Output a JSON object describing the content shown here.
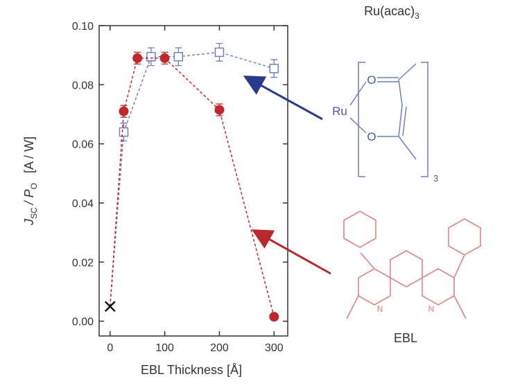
{
  "chart_data": {
    "type": "scatter",
    "xlabel": "EBL Thickness [Å]",
    "ylabel": [
      "J",
      "SC",
      "/ P",
      "O",
      "[A / W]"
    ],
    "xlim": [
      -20,
      325
    ],
    "ylim": [
      -0.005,
      0.1
    ],
    "xticks": [
      0,
      100,
      200,
      300
    ],
    "yticks": [
      {
        "value": 0,
        "label": "0.00"
      },
      {
        "value": 0.02,
        "label": "0.02"
      },
      {
        "value": 0.04,
        "label": "0.04"
      },
      {
        "value": 0.06,
        "label": "0.06"
      },
      {
        "value": 0.08,
        "label": "0.08"
      },
      {
        "value": 0.1,
        "label": "0.10"
      }
    ],
    "reference": {
      "x": 0,
      "value": 0.005,
      "color": "#111111"
    },
    "series": [
      {
        "color": "#6f7fc0",
        "marker": "square",
        "x": [
          25,
          75,
          125,
          200,
          300
        ],
        "values": [
          0.064,
          0.0895,
          0.0895,
          0.091,
          0.0855
        ],
        "errors": [
          0.003,
          0.003,
          0.003,
          0.003,
          0.003
        ]
      },
      {
        "color": "#c0282d",
        "marker": "circle",
        "x": [
          25,
          50,
          100,
          200,
          300
        ],
        "values": [
          0.071,
          0.089,
          0.089,
          0.0715,
          0.0015
        ],
        "errors": [
          0.002,
          0.002,
          0.002,
          0.002,
          0.001
        ]
      }
    ],
    "annotations": {
      "ru_title": "Ru(acac)",
      "ru_title_sub": "3",
      "ru": "Ru",
      "o1": "O",
      "o2": "O",
      "count": "3",
      "n1": "N",
      "n2": "N",
      "ebl": "EBL"
    }
  }
}
